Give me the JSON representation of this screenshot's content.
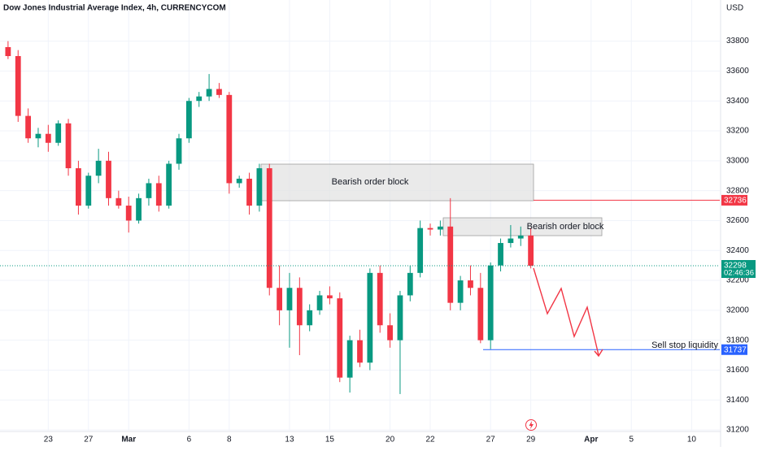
{
  "chart_data": {
    "type": "candlestick",
    "title": "Dow Jones Industrial Average Index, 4h, CURRENCYCOM",
    "currency": "USD",
    "up_color": "#089981",
    "down_color": "#f23645",
    "x": [
      -2,
      -1.5,
      -1,
      -0.5,
      0,
      0.5,
      1,
      1.5,
      2,
      2.5,
      3,
      3.5,
      4,
      4.5,
      5,
      5.5,
      6,
      6.5,
      7,
      7.5,
      8,
      8.5,
      9,
      9.5,
      10,
      10.5,
      11,
      11.5,
      12,
      12.5,
      13,
      13.5,
      14,
      14.5,
      15,
      15.5,
      16,
      16.5,
      17,
      17.5,
      18,
      18.5,
      19,
      19.5,
      20,
      20.5,
      21,
      21.5,
      22,
      22.5,
      23,
      23.5,
      24
    ],
    "open": [
      33760,
      33700,
      33300,
      33150,
      33180,
      33120,
      33250,
      32950,
      32700,
      32900,
      33000,
      32750,
      32700,
      32600,
      32750,
      32850,
      32700,
      32980,
      33150,
      33400,
      33430,
      33480,
      33440,
      32850,
      32880,
      32700,
      32950,
      32150,
      32000,
      32150,
      31900,
      32000,
      32100,
      32080,
      31550,
      31800,
      31650,
      32250,
      31900,
      31800,
      32100,
      32250,
      32550,
      32540,
      32560,
      32050,
      32200,
      32150,
      31800,
      32300,
      32450,
      32480,
      32500
    ],
    "high": [
      33800,
      33740,
      33350,
      33220,
      33240,
      33270,
      33280,
      33000,
      32920,
      33080,
      33060,
      32800,
      32760,
      32780,
      32880,
      32900,
      33000,
      33180,
      33420,
      33460,
      33580,
      33520,
      33460,
      32900,
      32920,
      32980,
      32980,
      32300,
      32250,
      32220,
      32040,
      32130,
      32160,
      32120,
      31830,
      31870,
      32280,
      32300,
      31980,
      32130,
      32300,
      32600,
      32580,
      32600,
      32750,
      32230,
      32300,
      32250,
      32320,
      32480,
      32570,
      32560,
      32550
    ],
    "low": [
      33680,
      33260,
      33120,
      33090,
      33060,
      33100,
      32900,
      32640,
      32680,
      32850,
      32700,
      32680,
      32520,
      32580,
      32700,
      32660,
      32680,
      32940,
      33120,
      33360,
      33400,
      33420,
      32780,
      32820,
      32640,
      32660,
      32100,
      31900,
      31750,
      31700,
      31860,
      31970,
      32040,
      31520,
      31450,
      31620,
      31600,
      31850,
      31750,
      31440,
      32060,
      32220,
      32500,
      32500,
      32000,
      32000,
      32100,
      31780,
      31740,
      32260,
      32420,
      32430,
      32280
    ],
    "close": [
      33700,
      33300,
      33150,
      33180,
      33120,
      33250,
      32950,
      32700,
      32900,
      33000,
      32750,
      32700,
      32600,
      32750,
      32850,
      32700,
      32980,
      33150,
      33400,
      33430,
      33480,
      33440,
      32850,
      32880,
      32700,
      32950,
      32150,
      32000,
      32150,
      31900,
      32000,
      32100,
      32080,
      31550,
      31800,
      31650,
      32250,
      31900,
      31800,
      32100,
      32250,
      32550,
      32540,
      32560,
      32050,
      32200,
      32150,
      31800,
      32300,
      32450,
      32480,
      32500,
      32298
    ],
    "xlim": [
      -2.4,
      33.4
    ],
    "xticks": [
      {
        "value": 0,
        "label": "23"
      },
      {
        "value": 2,
        "label": "27"
      },
      {
        "value": 4,
        "label": "Mar"
      },
      {
        "value": 7,
        "label": "6"
      },
      {
        "value": 9,
        "label": "8"
      },
      {
        "value": 12,
        "label": "13"
      },
      {
        "value": 14,
        "label": "15"
      },
      {
        "value": 17,
        "label": "20"
      },
      {
        "value": 19,
        "label": "22"
      },
      {
        "value": 22,
        "label": "27"
      },
      {
        "value": 24,
        "label": "29"
      },
      {
        "value": 27,
        "label": "Apr"
      },
      {
        "value": 29,
        "label": "5"
      },
      {
        "value": 32,
        "label": "10"
      }
    ],
    "ylim": [
      31195,
      34075
    ],
    "yticks": [
      31200,
      31400,
      31600,
      31800,
      32000,
      32200,
      32400,
      32600,
      32800,
      33000,
      33200,
      33400,
      33600,
      33800
    ],
    "grid": true,
    "last_price": 32298,
    "countdown": "02:46:36",
    "levels": [
      {
        "value": 32736,
        "color": "#f23645"
      },
      {
        "value": 31737,
        "color": "#2962ff"
      }
    ],
    "annotations": [
      "Bearish order block",
      "Bearish order block",
      "Sell stop liquidity"
    ]
  }
}
